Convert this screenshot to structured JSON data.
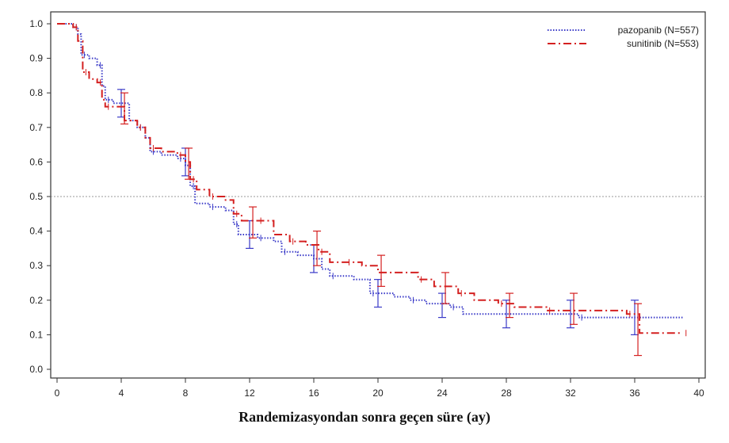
{
  "chart_data": {
    "type": "line",
    "title": "",
    "xlabel": "Randemizasyondan sonra geçen süre (ay)",
    "ylabel": "",
    "xlim": [
      0,
      40
    ],
    "ylim": [
      0,
      1.0
    ],
    "x_ticks": [
      0,
      4,
      8,
      12,
      16,
      20,
      24,
      28,
      32,
      36,
      40
    ],
    "y_ticks": [
      "0.0",
      "0.1",
      "0.2",
      "0.3",
      "0.4",
      "0.5",
      "0.6",
      "0.7",
      "0.8",
      "0.9",
      "1.0"
    ],
    "reference_line": {
      "y": 0.5
    },
    "legend_position": "top-right",
    "series": [
      {
        "name": "pazopanib (N=557)",
        "color": "#3a3ac8",
        "style": "dotted",
        "steps": [
          [
            0,
            1.0
          ],
          [
            1.0,
            0.99
          ],
          [
            1.3,
            0.97
          ],
          [
            1.5,
            0.91
          ],
          [
            2.0,
            0.9
          ],
          [
            2.5,
            0.88
          ],
          [
            2.8,
            0.82
          ],
          [
            3.0,
            0.78
          ],
          [
            3.5,
            0.77
          ],
          [
            4.0,
            0.77
          ],
          [
            4.5,
            0.72
          ],
          [
            5.0,
            0.7
          ],
          [
            5.5,
            0.67
          ],
          [
            5.8,
            0.63
          ],
          [
            6.5,
            0.62
          ],
          [
            7.5,
            0.61
          ],
          [
            8.0,
            0.59
          ],
          [
            8.3,
            0.53
          ],
          [
            8.6,
            0.48
          ],
          [
            9.5,
            0.47
          ],
          [
            10.5,
            0.46
          ],
          [
            11.0,
            0.42
          ],
          [
            11.3,
            0.39
          ],
          [
            12.5,
            0.38
          ],
          [
            13.5,
            0.37
          ],
          [
            14.0,
            0.34
          ],
          [
            15.0,
            0.33
          ],
          [
            16.0,
            0.32
          ],
          [
            16.5,
            0.29
          ],
          [
            17.0,
            0.27
          ],
          [
            18.5,
            0.26
          ],
          [
            19.5,
            0.22
          ],
          [
            21.0,
            0.21
          ],
          [
            22.0,
            0.2
          ],
          [
            23.0,
            0.19
          ],
          [
            24.5,
            0.18
          ],
          [
            25.3,
            0.16
          ],
          [
            28.0,
            0.16
          ],
          [
            30.5,
            0.16
          ],
          [
            32.5,
            0.15
          ],
          [
            35.0,
            0.15
          ],
          [
            36.0,
            0.15
          ],
          [
            39.0,
            0.15
          ]
        ],
        "error_bars": [
          {
            "x": 4.0,
            "lo": 0.73,
            "hi": 0.81
          },
          {
            "x": 8.0,
            "lo": 0.56,
            "hi": 0.64
          },
          {
            "x": 12.0,
            "lo": 0.35,
            "hi": 0.43
          },
          {
            "x": 16.0,
            "lo": 0.28,
            "hi": 0.36
          },
          {
            "x": 20.0,
            "lo": 0.18,
            "hi": 0.26
          },
          {
            "x": 24.0,
            "lo": 0.15,
            "hi": 0.22
          },
          {
            "x": 28.0,
            "lo": 0.12,
            "hi": 0.2
          },
          {
            "x": 32.0,
            "lo": 0.12,
            "hi": 0.2
          },
          {
            "x": 36.0,
            "lo": 0.1,
            "hi": 0.2
          }
        ]
      },
      {
        "name": "sunitinib (N=553)",
        "color": "#d42020",
        "style": "dash-dot",
        "steps": [
          [
            0,
            1.0
          ],
          [
            1.0,
            0.99
          ],
          [
            1.3,
            0.95
          ],
          [
            1.6,
            0.86
          ],
          [
            2.0,
            0.84
          ],
          [
            2.5,
            0.83
          ],
          [
            2.8,
            0.78
          ],
          [
            3.0,
            0.76
          ],
          [
            3.5,
            0.76
          ],
          [
            4.0,
            0.76
          ],
          [
            4.2,
            0.72
          ],
          [
            5.0,
            0.7
          ],
          [
            5.5,
            0.67
          ],
          [
            5.8,
            0.64
          ],
          [
            6.5,
            0.63
          ],
          [
            7.5,
            0.62
          ],
          [
            8.0,
            0.6
          ],
          [
            8.3,
            0.55
          ],
          [
            8.7,
            0.52
          ],
          [
            9.5,
            0.5
          ],
          [
            10.5,
            0.49
          ],
          [
            11.0,
            0.45
          ],
          [
            11.5,
            0.43
          ],
          [
            12.5,
            0.43
          ],
          [
            13.5,
            0.39
          ],
          [
            14.5,
            0.37
          ],
          [
            15.5,
            0.36
          ],
          [
            16.3,
            0.34
          ],
          [
            17.0,
            0.31
          ],
          [
            18.0,
            0.31
          ],
          [
            19.0,
            0.3
          ],
          [
            20.0,
            0.28
          ],
          [
            21.5,
            0.28
          ],
          [
            22.5,
            0.26
          ],
          [
            23.5,
            0.24
          ],
          [
            25.0,
            0.22
          ],
          [
            26.0,
            0.2
          ],
          [
            27.5,
            0.19
          ],
          [
            28.5,
            0.18
          ],
          [
            30.5,
            0.17
          ],
          [
            33.5,
            0.17
          ],
          [
            35.5,
            0.16
          ],
          [
            36.3,
            0.105
          ],
          [
            39.0,
            0.105
          ]
        ],
        "error_bars": [
          {
            "x": 4.2,
            "lo": 0.71,
            "hi": 0.8
          },
          {
            "x": 8.2,
            "lo": 0.55,
            "hi": 0.64
          },
          {
            "x": 12.2,
            "lo": 0.38,
            "hi": 0.47
          },
          {
            "x": 16.2,
            "lo": 0.3,
            "hi": 0.4
          },
          {
            "x": 20.2,
            "lo": 0.24,
            "hi": 0.33
          },
          {
            "x": 24.2,
            "lo": 0.19,
            "hi": 0.28
          },
          {
            "x": 28.2,
            "lo": 0.15,
            "hi": 0.22
          },
          {
            "x": 32.2,
            "lo": 0.13,
            "hi": 0.22
          },
          {
            "x": 36.2,
            "lo": 0.04,
            "hi": 0.19
          }
        ]
      }
    ]
  }
}
